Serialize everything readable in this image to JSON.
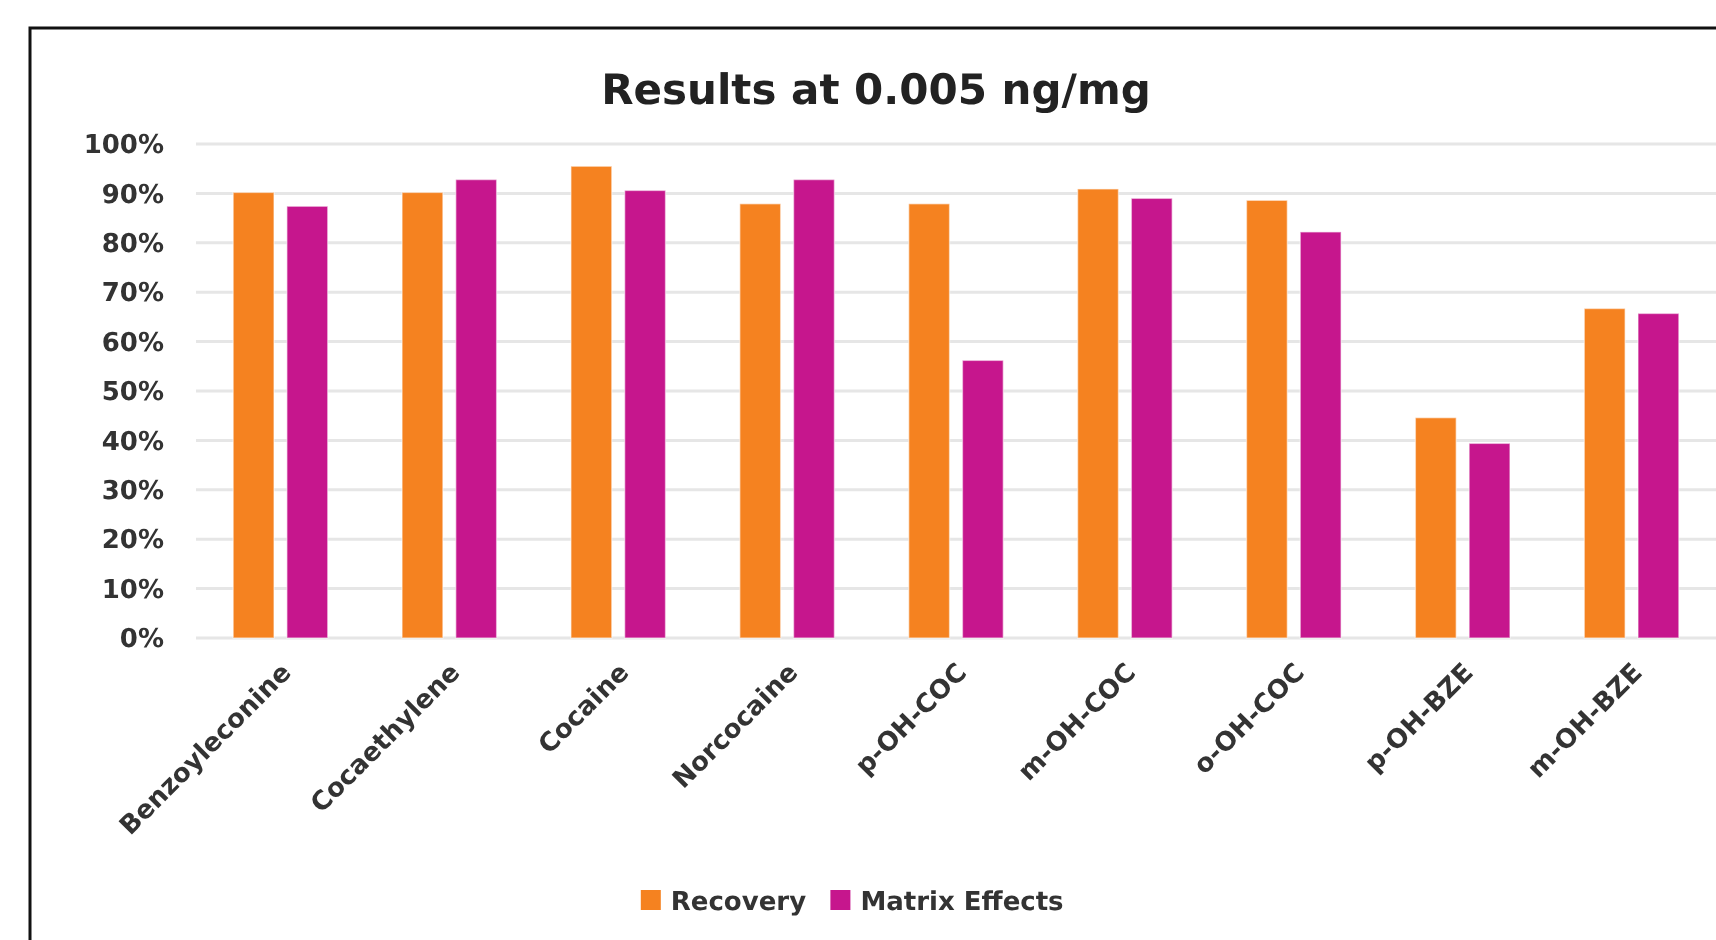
{
  "chart_data": {
    "type": "bar",
    "title": "Results at 0.005 ng/mg",
    "categories": [
      "Benzoyleconine",
      "Cocaethylene",
      "Cocaine",
      "Norcocaine",
      "p-OH-COC",
      "m-OH-COC",
      "o-OH-COC",
      "p-OH-BZE",
      "m-OH-BZE"
    ],
    "series": [
      {
        "name": "Recovery",
        "color": "#f58220",
        "values": [
          90.2,
          90.2,
          95.5,
          87.9,
          87.9,
          90.9,
          88.6,
          44.6,
          66.7
        ]
      },
      {
        "name": "Matrix Effects",
        "color": "#c6168d",
        "values": [
          87.4,
          92.8,
          90.6,
          92.8,
          56.2,
          89.0,
          82.2,
          39.4,
          65.7
        ]
      }
    ],
    "ylim": [
      0,
      100
    ],
    "yticks": [
      {
        "value": 0,
        "label": "0%"
      },
      {
        "value": 10,
        "label": "10%"
      },
      {
        "value": 20,
        "label": "20%"
      },
      {
        "value": 30,
        "label": "30%"
      },
      {
        "value": 40,
        "label": "40%"
      },
      {
        "value": 50,
        "label": "50%"
      },
      {
        "value": 60,
        "label": "60%"
      },
      {
        "value": 70,
        "label": "70%"
      },
      {
        "value": 80,
        "label": "80%"
      },
      {
        "value": 90,
        "label": "90%"
      },
      {
        "value": 100,
        "label": "100%"
      }
    ],
    "grid": "y",
    "legend": "bottom"
  }
}
